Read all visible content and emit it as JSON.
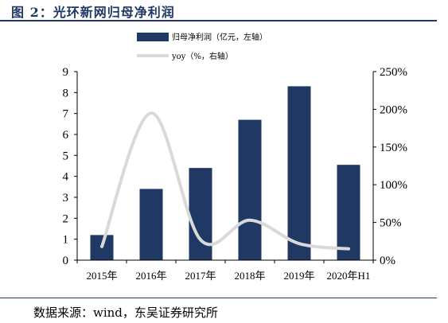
{
  "figure_title": "图 2：光环新网归母净利润",
  "source_note": "数据来源：wind，东吴证券研究所",
  "chart_data": {
    "type": "bar",
    "categories": [
      "2015年",
      "2016年",
      "2017年",
      "2018年",
      "2019年",
      "2020年H1"
    ],
    "series": [
      {
        "name": "归母净利润（亿元，左轴）",
        "kind": "bar",
        "axis": "left",
        "color": "#1f3864",
        "values": [
          1.2,
          3.4,
          4.4,
          6.7,
          8.3,
          4.55
        ]
      },
      {
        "name": "yoy（%，右轴）",
        "kind": "line",
        "axis": "right",
        "color": "#d9d9d9",
        "smooth": true,
        "values": [
          18,
          195,
          27,
          53,
          22,
          15
        ]
      }
    ],
    "left_axis": {
      "ylim": [
        0,
        9
      ],
      "ticks": [
        "0",
        "1",
        "2",
        "3",
        "4",
        "5",
        "6",
        "7",
        "8",
        "9"
      ]
    },
    "right_axis": {
      "ylim": [
        0,
        250
      ],
      "ticks": [
        "0%",
        "50%",
        "100%",
        "150%",
        "200%",
        "250%"
      ]
    },
    "legend": {
      "placement": "top-center"
    },
    "grid": false
  }
}
